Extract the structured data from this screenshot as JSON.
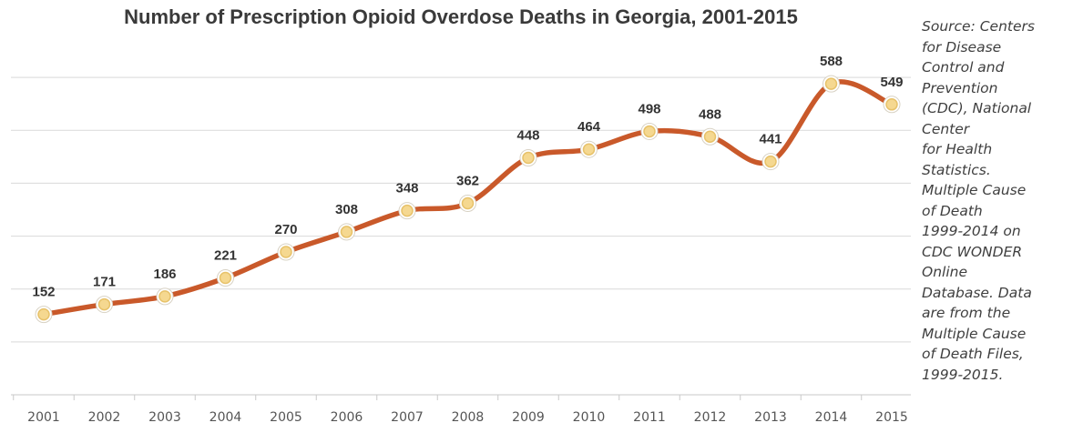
{
  "source_note": "Source: Centers\nfor Disease\nControl and\nPrevention\n(CDC), National\nCenter\nfor Health\nStatistics.\nMultiple Cause\nof Death\n1999-2014 on\nCDC WONDER\nOnline\nDatabase. Data\nare from the\nMultiple Cause\nof Death Files,\n1999-2015.",
  "colors": {
    "line": "#c9592a",
    "marker_fill": "#f5d890",
    "marker_stroke": "#ffffff",
    "marker_ring": "#e7c26a"
  },
  "chart_data": {
    "type": "line",
    "title": "Number of Prescription Opioid Overdose Deaths in Georgia, 2001-2015",
    "xlabel": "",
    "ylabel": "",
    "x": [
      "2001",
      "2002",
      "2003",
      "2004",
      "2005",
      "2006",
      "2007",
      "2008",
      "2009",
      "2010",
      "2011",
      "2012",
      "2013",
      "2014",
      "2015"
    ],
    "series": [
      {
        "values": [
          152,
          171,
          186,
          221,
          270,
          308,
          348,
          362,
          448,
          464,
          498,
          488,
          441,
          588,
          549
        ]
      }
    ],
    "ylim": [
      0,
      700
    ],
    "grid": true,
    "y_tick_labels_visible": false,
    "data_labels": true,
    "smooth": true
  }
}
